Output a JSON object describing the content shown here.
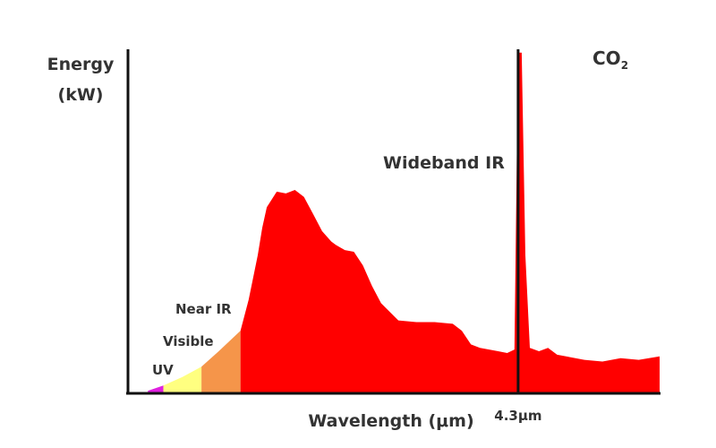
{
  "chart_data": {
    "type": "area",
    "title": "",
    "ylabel_line1": "Energy",
    "ylabel_line2": "(kW)",
    "xlabel": "Wavelength (μm)",
    "x_ticks": [
      {
        "value": 4.3,
        "label": "4.3μm"
      }
    ],
    "xlim": [
      0,
      5.86
    ],
    "ylim": [
      0,
      100
    ],
    "grid": false,
    "legend": "none",
    "bands": [
      {
        "name": "UV",
        "label": "UV",
        "range": [
          0.22,
          0.39
        ],
        "color": "#e020e0"
      },
      {
        "name": "Visible",
        "label": "Visible",
        "range": [
          0.39,
          0.81
        ],
        "color": "#ffff80"
      },
      {
        "name": "Near IR",
        "label": "Near IR",
        "range": [
          0.81,
          1.24
        ],
        "color": "#f5954a"
      },
      {
        "name": "Wideband IR",
        "label": "Wideband IR",
        "range": [
          1.24,
          5.86
        ],
        "color": "#ff0000"
      }
    ],
    "series": [
      {
        "x": [
          0.0,
          0.22,
          0.39,
          0.6,
          0.81,
          1.0,
          1.24,
          1.33,
          1.43,
          1.48,
          1.53,
          1.64,
          1.74,
          1.84,
          1.94,
          2.04,
          2.14,
          2.24,
          2.29,
          2.39,
          2.49,
          2.59,
          2.69,
          2.79,
          2.98,
          3.18,
          3.38,
          3.58,
          3.68,
          3.78,
          3.88,
          4.08,
          4.18,
          4.26,
          4.3,
          4.34,
          4.38,
          4.43,
          4.53,
          4.63,
          4.73,
          4.83,
          5.03,
          5.23,
          5.43,
          5.63,
          5.86
        ],
        "y": [
          0.0,
          0.5,
          2.0,
          4.5,
          7.5,
          12.0,
          18.0,
          27.0,
          40.0,
          48.0,
          54.0,
          58.5,
          58.0,
          59.0,
          57.0,
          52.0,
          47.0,
          44.0,
          43.0,
          41.5,
          41.0,
          37.0,
          31.0,
          26.0,
          21.0,
          20.5,
          20.5,
          20.0,
          18.0,
          14.0,
          13.0,
          12.0,
          11.5,
          12.5,
          99.0,
          99.0,
          40.0,
          13.0,
          12.0,
          13.0,
          11.0,
          10.5,
          9.5,
          9.0,
          10.0,
          9.5,
          10.5
        ]
      }
    ],
    "annotations": [
      {
        "text": "CO",
        "sub": "2",
        "x": 4.3,
        "note": "absorption peak"
      }
    ]
  }
}
